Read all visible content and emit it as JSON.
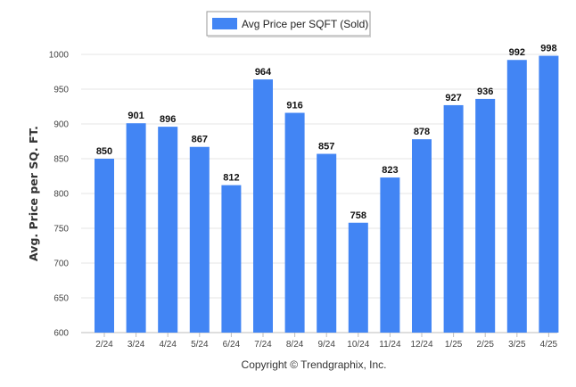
{
  "chart_data": {
    "type": "bar",
    "categories": [
      "2/24",
      "3/24",
      "4/24",
      "5/24",
      "6/24",
      "7/24",
      "8/24",
      "9/24",
      "10/24",
      "11/24",
      "12/24",
      "1/25",
      "2/25",
      "3/25",
      "4/25"
    ],
    "series": [
      {
        "name": "Avg Price per SQFT (Sold)",
        "values": [
          850,
          901,
          896,
          867,
          812,
          964,
          916,
          857,
          758,
          823,
          878,
          927,
          936,
          992,
          998
        ],
        "color": "#4285f4"
      }
    ],
    "ylabel": "Avg. Price per SQ. FT.",
    "xlabel": "",
    "ylim": [
      600,
      1000
    ],
    "yticks": [
      600,
      650,
      700,
      750,
      800,
      850,
      900,
      950,
      1000
    ],
    "grid": true,
    "legend": "top-center",
    "data_labels": true
  },
  "footer": {
    "copyright": "Copyright © Trendgraphix, Inc."
  }
}
